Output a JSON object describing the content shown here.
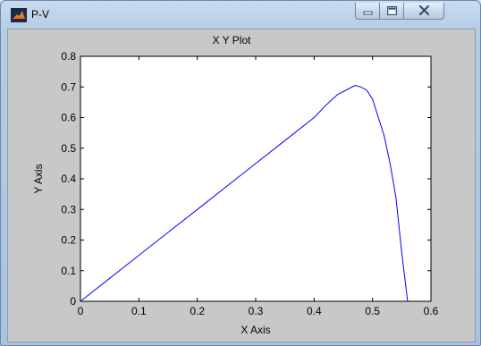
{
  "window": {
    "title": "P-V",
    "icon": "matlab-icon",
    "controls": [
      "minimize-icon",
      "maximize-icon",
      "close-icon"
    ]
  },
  "chart_data": {
    "type": "line",
    "title": "X Y Plot",
    "xlabel": "X Axis",
    "ylabel": "Y Axis",
    "xlim": [
      0,
      0.6
    ],
    "ylim": [
      0,
      0.8
    ],
    "xticks": [
      "0",
      "0.1",
      "0.2",
      "0.3",
      "0.4",
      "0.5",
      "0.6"
    ],
    "yticks": [
      "0",
      "0.1",
      "0.2",
      "0.3",
      "0.4",
      "0.5",
      "0.6",
      "0.7",
      "0.8"
    ],
    "grid": false,
    "series": [
      {
        "color": "#0000ff",
        "x": [
          0,
          0.05,
          0.1,
          0.15,
          0.2,
          0.25,
          0.3,
          0.35,
          0.4,
          0.42,
          0.44,
          0.46,
          0.47,
          0.48,
          0.49,
          0.5,
          0.51,
          0.52,
          0.53,
          0.54,
          0.545,
          0.55,
          0.555,
          0.56
        ],
        "y": [
          0,
          0.075,
          0.15,
          0.225,
          0.3,
          0.375,
          0.45,
          0.525,
          0.6,
          0.64,
          0.675,
          0.695,
          0.705,
          0.7,
          0.69,
          0.66,
          0.6,
          0.54,
          0.45,
          0.34,
          0.25,
          0.16,
          0.08,
          0
        ]
      }
    ]
  }
}
